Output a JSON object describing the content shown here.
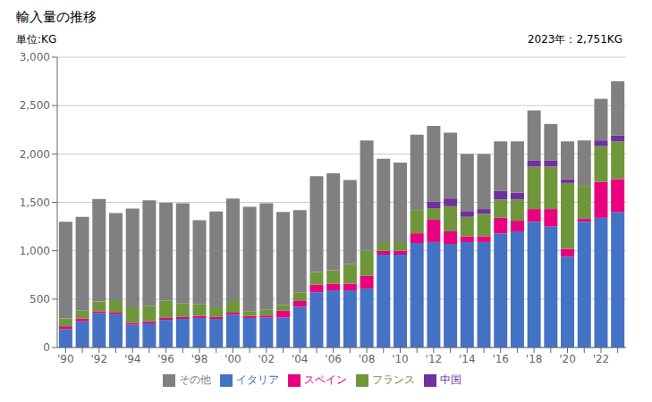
{
  "chart_data": {
    "type": "bar",
    "title": "輸入量の推移",
    "ylabel": "単位:KG",
    "annotation": "2023年：2,751KG",
    "stacked": true,
    "grid": true,
    "legend": "bottom",
    "categories": [
      "'90",
      null,
      "'92",
      null,
      "'94",
      null,
      "'96",
      null,
      "'98",
      null,
      "'00",
      null,
      "'02",
      null,
      "'04",
      null,
      "'06",
      null,
      "'08",
      null,
      "'10",
      null,
      "'12",
      null,
      "'14",
      null,
      "'16",
      null,
      "'18",
      null,
      "'20",
      null,
      "'22",
      null
    ],
    "ylim": [
      0,
      3000
    ],
    "yticks": [
      0,
      500,
      {
        "value": 1000,
        "label": "1,000"
      },
      {
        "value": 1500,
        "label": "1,500"
      },
      {
        "value": 2000,
        "label": "2,000"
      },
      {
        "value": 2500,
        "label": "2,500"
      },
      {
        "value": 3000,
        "label": "3,000"
      }
    ],
    "series": [
      {
        "name": "イタリア",
        "color": "#4472C4",
        "values": [
          190,
          270,
          355,
          345,
          235,
          250,
          285,
          295,
          305,
          295,
          340,
          305,
          310,
          310,
          420,
          570,
          590,
          590,
          610,
          960,
          960,
          1080,
          1090,
          1070,
          1090,
          1090,
          1180,
          1200,
          1300,
          1250,
          940,
          1300,
          1340,
          1400
        ]
      },
      {
        "name": "スペイン",
        "color": "#E8007F",
        "values": [
          30,
          30,
          20,
          15,
          20,
          20,
          20,
          20,
          20,
          20,
          20,
          20,
          20,
          70,
          60,
          80,
          70,
          70,
          130,
          40,
          40,
          100,
          230,
          130,
          60,
          60,
          160,
          110,
          130,
          180,
          80,
          30,
          370,
          340
        ]
      },
      {
        "name": "フランス",
        "color": "#70963C",
        "values": [
          80,
          80,
          100,
          130,
          160,
          160,
          180,
          140,
          120,
          100,
          120,
          50,
          60,
          60,
          90,
          130,
          140,
          200,
          260,
          80,
          90,
          240,
          120,
          260,
          200,
          230,
          190,
          220,
          440,
          440,
          680,
          340,
          370,
          390
        ]
      },
      {
        "name": "中国",
        "color": "#7030A0",
        "values": [
          0,
          0,
          0,
          0,
          0,
          0,
          0,
          0,
          0,
          0,
          0,
          0,
          0,
          0,
          0,
          0,
          0,
          0,
          0,
          0,
          0,
          0,
          70,
          80,
          60,
          50,
          90,
          70,
          60,
          60,
          40,
          0,
          60,
          60
        ]
      },
      {
        "name": "その他",
        "color": "#808080",
        "values": [
          1000,
          970,
          1060,
          900,
          1020,
          1090,
          1010,
          1035,
          870,
          990,
          1060,
          1080,
          1100,
          960,
          850,
          990,
          1000,
          870,
          1140,
          870,
          820,
          780,
          780,
          680,
          590,
          570,
          510,
          530,
          520,
          380,
          390,
          470,
          430,
          561
        ]
      }
    ]
  }
}
